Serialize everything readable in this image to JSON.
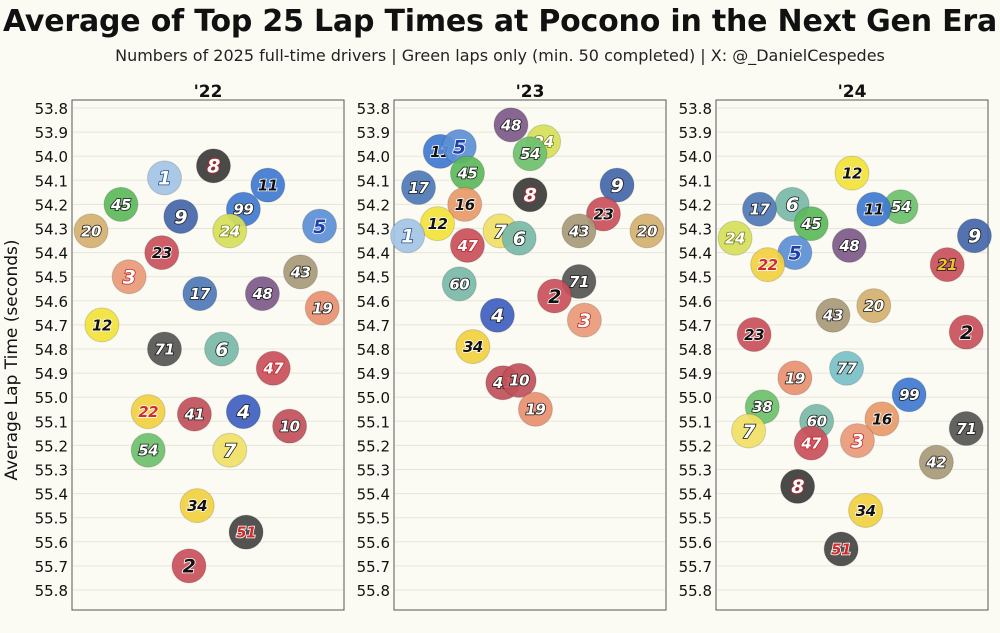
{
  "chart_data": {
    "type": "scatter",
    "title": "Average of Top 25 Lap Times at Pocono in the Next Gen Era",
    "subtitle": "Numbers of 2025 full-time drivers | Green laps only (min. 50 completed) | X: @_DanielCespedes",
    "ylabel": "Average Lap Time (seconds)",
    "ylim": [
      53.8,
      55.8
    ],
    "y_inverted": true,
    "yticks": [
      "53.8",
      "53.9",
      "54.0",
      "54.1",
      "54.2",
      "54.3",
      "54.4",
      "54.5",
      "54.6",
      "54.7",
      "54.8",
      "54.9",
      "55.0",
      "55.1",
      "55.2",
      "55.3",
      "55.4",
      "55.5",
      "55.6",
      "55.7",
      "55.8"
    ],
    "grid": true,
    "panels": [
      {
        "label": "'22",
        "points": [
          {
            "car": "1",
            "y": 54.09,
            "fill": "#a3c4e6",
            "num_color": "#ffffff",
            "num_stroke": "#2b4f8a"
          },
          {
            "car": "8",
            "y": 54.04,
            "fill": "#3b3b3b",
            "num_color": "#ffffff",
            "num_stroke": "#c0242b"
          },
          {
            "car": "11",
            "y": 54.12,
            "fill": "#3f7ad0",
            "num_color": "#111111",
            "num_stroke": "#ffffff"
          },
          {
            "car": "45",
            "y": 54.2,
            "fill": "#5cb85c",
            "num_color": "#ffffff",
            "num_stroke": "#1a1a1a"
          },
          {
            "car": "99",
            "y": 54.22,
            "fill": "#3f7ad0",
            "num_color": "#ffffff",
            "num_stroke": "#1a1a1a"
          },
          {
            "car": "9",
            "y": 54.25,
            "fill": "#4466aa",
            "num_color": "#ffffff",
            "num_stroke": "#1a1a1a"
          },
          {
            "car": "5",
            "y": 54.29,
            "fill": "#5b8fd6",
            "num_color": "#1f3fa8",
            "num_stroke": "#ffffff"
          },
          {
            "car": "20",
            "y": 54.31,
            "fill": "#d4b070",
            "num_color": "#ffffff",
            "num_stroke": "#1a1a1a"
          },
          {
            "car": "24",
            "y": 54.31,
            "fill": "#d6e05a",
            "num_color": "#ffffff",
            "num_stroke": "#7a8020"
          },
          {
            "car": "23",
            "y": 54.4,
            "fill": "#c94f5a",
            "num_color": "#111111",
            "num_stroke": "#ffffff"
          },
          {
            "car": "3",
            "y": 54.5,
            "fill": "#e89a7a",
            "num_color": "#ffffff",
            "num_stroke": "#c0242b"
          },
          {
            "car": "43",
            "y": 54.48,
            "fill": "#a89a78",
            "num_color": "#ffffff",
            "num_stroke": "#1a1a1a"
          },
          {
            "car": "17",
            "y": 54.57,
            "fill": "#4f78b8",
            "num_color": "#ffffff",
            "num_stroke": "#1a1a1a"
          },
          {
            "car": "48",
            "y": 54.57,
            "fill": "#7d5a8a",
            "num_color": "#ffffff",
            "num_stroke": "#1a1a1a"
          },
          {
            "car": "19",
            "y": 54.63,
            "fill": "#e89070",
            "num_color": "#ffffff",
            "num_stroke": "#1a1a1a"
          },
          {
            "car": "12",
            "y": 54.7,
            "fill": "#f2e33a",
            "num_color": "#111111",
            "num_stroke": "#ffffff"
          },
          {
            "car": "71",
            "y": 54.8,
            "fill": "#555555",
            "num_color": "#ffffff",
            "num_stroke": "#1a1a1a"
          },
          {
            "car": "6",
            "y": 54.8,
            "fill": "#7ab8a8",
            "num_color": "#ffffff",
            "num_stroke": "#1a1a1a"
          },
          {
            "car": "47",
            "y": 54.88,
            "fill": "#c94f5a",
            "num_color": "#ffffff",
            "num_stroke": "#c0242b"
          },
          {
            "car": "22",
            "y": 55.06,
            "fill": "#f2d040",
            "num_color": "#d42a2a",
            "num_stroke": "#ffffff"
          },
          {
            "car": "41",
            "y": 55.07,
            "fill": "#c0505a",
            "num_color": "#ffffff",
            "num_stroke": "#1a1a1a"
          },
          {
            "car": "4",
            "y": 55.06,
            "fill": "#3f5fc0",
            "num_color": "#ffffff",
            "num_stroke": "#1a1a1a"
          },
          {
            "car": "10",
            "y": 55.12,
            "fill": "#c0505a",
            "num_color": "#ffffff",
            "num_stroke": "#1a1a1a"
          },
          {
            "car": "54",
            "y": 55.22,
            "fill": "#6cc06c",
            "num_color": "#ffffff",
            "num_stroke": "#1a1a1a"
          },
          {
            "car": "7",
            "y": 55.22,
            "fill": "#f0e066",
            "num_color": "#ffffff",
            "num_stroke": "#1a1a1a"
          },
          {
            "car": "34",
            "y": 55.45,
            "fill": "#f2d040",
            "num_color": "#111111",
            "num_stroke": "#ffffff"
          },
          {
            "car": "51",
            "y": 55.56,
            "fill": "#444444",
            "num_color": "#d42a2a",
            "num_stroke": "#ffffff"
          },
          {
            "car": "2",
            "y": 55.7,
            "fill": "#c94f5a",
            "num_color": "#111111",
            "num_stroke": "#ffffff"
          }
        ]
      },
      {
        "label": "'23",
        "points": [
          {
            "car": "48",
            "y": 53.87,
            "fill": "#7d5a8a",
            "num_color": "#ffffff",
            "num_stroke": "#1a1a1a"
          },
          {
            "car": "11",
            "y": 53.98,
            "fill": "#3f7ad0",
            "num_color": "#111111",
            "num_stroke": "#ffffff"
          },
          {
            "car": "5",
            "y": 53.96,
            "fill": "#5b8fd6",
            "num_color": "#1f3fa8",
            "num_stroke": "#ffffff"
          },
          {
            "car": "24",
            "y": 53.94,
            "fill": "#d6e05a",
            "num_color": "#ffffff",
            "num_stroke": "#7a8020"
          },
          {
            "car": "54",
            "y": 53.99,
            "fill": "#6cc06c",
            "num_color": "#ffffff",
            "num_stroke": "#1a1a1a"
          },
          {
            "car": "45",
            "y": 54.07,
            "fill": "#5cb85c",
            "num_color": "#ffffff",
            "num_stroke": "#1a1a1a"
          },
          {
            "car": "17",
            "y": 54.13,
            "fill": "#4f78b8",
            "num_color": "#ffffff",
            "num_stroke": "#1a1a1a"
          },
          {
            "car": "9",
            "y": 54.12,
            "fill": "#4466aa",
            "num_color": "#ffffff",
            "num_stroke": "#1a1a1a"
          },
          {
            "car": "8",
            "y": 54.16,
            "fill": "#3b3b3b",
            "num_color": "#ffffff",
            "num_stroke": "#c0242b"
          },
          {
            "car": "16",
            "y": 54.2,
            "fill": "#e89a6a",
            "num_color": "#111111",
            "num_stroke": "#ffffff"
          },
          {
            "car": "23",
            "y": 54.24,
            "fill": "#c94f5a",
            "num_color": "#111111",
            "num_stroke": "#ffffff"
          },
          {
            "car": "12",
            "y": 54.28,
            "fill": "#f2e33a",
            "num_color": "#111111",
            "num_stroke": "#ffffff"
          },
          {
            "car": "7",
            "y": 54.31,
            "fill": "#f0e066",
            "num_color": "#ffffff",
            "num_stroke": "#1a1a1a"
          },
          {
            "car": "43",
            "y": 54.31,
            "fill": "#a89a78",
            "num_color": "#ffffff",
            "num_stroke": "#1a1a1a"
          },
          {
            "car": "20",
            "y": 54.31,
            "fill": "#d4b070",
            "num_color": "#ffffff",
            "num_stroke": "#1a1a1a"
          },
          {
            "car": "1",
            "y": 54.33,
            "fill": "#a3c4e6",
            "num_color": "#ffffff",
            "num_stroke": "#2b4f8a"
          },
          {
            "car": "47",
            "y": 54.37,
            "fill": "#c94f5a",
            "num_color": "#ffffff",
            "num_stroke": "#c0242b"
          },
          {
            "car": "6",
            "y": 54.34,
            "fill": "#7ab8a8",
            "num_color": "#ffffff",
            "num_stroke": "#1a1a1a"
          },
          {
            "car": "60",
            "y": 54.53,
            "fill": "#7ab8a8",
            "num_color": "#ffffff",
            "num_stroke": "#1a1a1a"
          },
          {
            "car": "71",
            "y": 54.52,
            "fill": "#555555",
            "num_color": "#ffffff",
            "num_stroke": "#1a1a1a"
          },
          {
            "car": "2",
            "y": 54.58,
            "fill": "#c94f5a",
            "num_color": "#111111",
            "num_stroke": "#ffffff"
          },
          {
            "car": "4",
            "y": 54.66,
            "fill": "#3f5fc0",
            "num_color": "#ffffff",
            "num_stroke": "#1a1a1a"
          },
          {
            "car": "3",
            "y": 54.68,
            "fill": "#e89a7a",
            "num_color": "#ffffff",
            "num_stroke": "#c0242b"
          },
          {
            "car": "34",
            "y": 54.79,
            "fill": "#f2d040",
            "num_color": "#111111",
            "num_stroke": "#ffffff"
          },
          {
            "car": "41",
            "y": 54.94,
            "fill": "#c0505a",
            "num_color": "#ffffff",
            "num_stroke": "#1a1a1a"
          },
          {
            "car": "10",
            "y": 54.93,
            "fill": "#c0505a",
            "num_color": "#ffffff",
            "num_stroke": "#1a1a1a"
          },
          {
            "car": "19",
            "y": 55.05,
            "fill": "#e89070",
            "num_color": "#ffffff",
            "num_stroke": "#1a1a1a"
          }
        ]
      },
      {
        "label": "'24",
        "points": [
          {
            "car": "12",
            "y": 54.07,
            "fill": "#f2e33a",
            "num_color": "#111111",
            "num_stroke": "#ffffff"
          },
          {
            "car": "6",
            "y": 54.2,
            "fill": "#7ab8a8",
            "num_color": "#ffffff",
            "num_stroke": "#1a1a1a"
          },
          {
            "car": "17",
            "y": 54.22,
            "fill": "#4f78b8",
            "num_color": "#ffffff",
            "num_stroke": "#1a1a1a"
          },
          {
            "car": "54",
            "y": 54.21,
            "fill": "#6cc06c",
            "num_color": "#ffffff",
            "num_stroke": "#1a1a1a"
          },
          {
            "car": "11",
            "y": 54.22,
            "fill": "#3f7ad0",
            "num_color": "#111111",
            "num_stroke": "#ffffff"
          },
          {
            "car": "45",
            "y": 54.28,
            "fill": "#5cb85c",
            "num_color": "#ffffff",
            "num_stroke": "#1a1a1a"
          },
          {
            "car": "9",
            "y": 54.33,
            "fill": "#4466aa",
            "num_color": "#ffffff",
            "num_stroke": "#1a1a1a"
          },
          {
            "car": "24",
            "y": 54.34,
            "fill": "#d6e05a",
            "num_color": "#ffffff",
            "num_stroke": "#7a8020"
          },
          {
            "car": "48",
            "y": 54.37,
            "fill": "#7d5a8a",
            "num_color": "#ffffff",
            "num_stroke": "#1a1a1a"
          },
          {
            "car": "5",
            "y": 54.4,
            "fill": "#5b8fd6",
            "num_color": "#1f3fa8",
            "num_stroke": "#ffffff"
          },
          {
            "car": "22",
            "y": 54.45,
            "fill": "#f2d040",
            "num_color": "#d42a2a",
            "num_stroke": "#ffffff"
          },
          {
            "car": "21",
            "y": 54.45,
            "fill": "#c94f5a",
            "num_color": "#f2c230",
            "num_stroke": "#1a1a1a"
          },
          {
            "car": "20",
            "y": 54.62,
            "fill": "#d4b070",
            "num_color": "#ffffff",
            "num_stroke": "#1a1a1a"
          },
          {
            "car": "43",
            "y": 54.66,
            "fill": "#a89a78",
            "num_color": "#ffffff",
            "num_stroke": "#1a1a1a"
          },
          {
            "car": "23",
            "y": 54.74,
            "fill": "#c94f5a",
            "num_color": "#111111",
            "num_stroke": "#ffffff"
          },
          {
            "car": "2",
            "y": 54.73,
            "fill": "#c94f5a",
            "num_color": "#111111",
            "num_stroke": "#ffffff"
          },
          {
            "car": "77",
            "y": 54.88,
            "fill": "#7ac0c8",
            "num_color": "#ffffff",
            "num_stroke": "#1a1a1a"
          },
          {
            "car": "19",
            "y": 54.92,
            "fill": "#e89070",
            "num_color": "#ffffff",
            "num_stroke": "#1a1a1a"
          },
          {
            "car": "99",
            "y": 54.99,
            "fill": "#3f7ad0",
            "num_color": "#ffffff",
            "num_stroke": "#1a1a1a"
          },
          {
            "car": "38",
            "y": 55.04,
            "fill": "#6cc06c",
            "num_color": "#ffffff",
            "num_stroke": "#1a1a1a"
          },
          {
            "car": "60",
            "y": 55.1,
            "fill": "#7ab8a8",
            "num_color": "#ffffff",
            "num_stroke": "#1a1a1a"
          },
          {
            "car": "16",
            "y": 55.09,
            "fill": "#e89a6a",
            "num_color": "#111111",
            "num_stroke": "#ffffff"
          },
          {
            "car": "71",
            "y": 55.13,
            "fill": "#555555",
            "num_color": "#ffffff",
            "num_stroke": "#1a1a1a"
          },
          {
            "car": "7",
            "y": 55.14,
            "fill": "#f0e066",
            "num_color": "#ffffff",
            "num_stroke": "#1a1a1a"
          },
          {
            "car": "3",
            "y": 55.18,
            "fill": "#e89a7a",
            "num_color": "#ffffff",
            "num_stroke": "#c0242b"
          },
          {
            "car": "47",
            "y": 55.19,
            "fill": "#c94f5a",
            "num_color": "#ffffff",
            "num_stroke": "#c0242b"
          },
          {
            "car": "42",
            "y": 55.27,
            "fill": "#a89a78",
            "num_color": "#ffffff",
            "num_stroke": "#1a1a1a"
          },
          {
            "car": "8",
            "y": 55.37,
            "fill": "#3b3b3b",
            "num_color": "#ffffff",
            "num_stroke": "#c0242b"
          },
          {
            "car": "34",
            "y": 55.47,
            "fill": "#f2d040",
            "num_color": "#111111",
            "num_stroke": "#ffffff"
          },
          {
            "car": "51",
            "y": 55.63,
            "fill": "#444444",
            "num_color": "#d42a2a",
            "num_stroke": "#ffffff"
          }
        ]
      }
    ]
  }
}
